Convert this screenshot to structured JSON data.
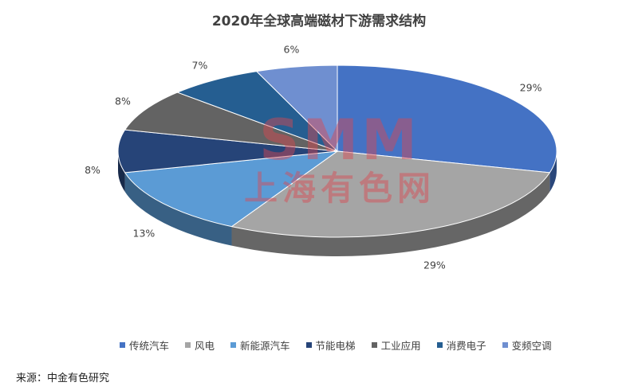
{
  "chart_data": {
    "type": "pie",
    "title": "2020年全球高端磁材下游需求结构",
    "categories": [
      "传统汽车",
      "风电",
      "新能源汽车",
      "节能电梯",
      "工业应用",
      "消费电子",
      "变频空调"
    ],
    "values": [
      29,
      29,
      13,
      8,
      8,
      7,
      6
    ],
    "labels": [
      "29%",
      "29%",
      "13%",
      "8%",
      "8%",
      "7%",
      "6%"
    ],
    "colors": [
      "#4472C4",
      "#A5A5A5",
      "#5B9BD5",
      "#264478",
      "#636363",
      "#255E91",
      "#6F8FD0"
    ],
    "legend_position": "bottom",
    "style": "3d"
  },
  "watermark": {
    "logo": "SMM",
    "text": "上海有色网"
  },
  "source_note": "来源：中金有色研究"
}
